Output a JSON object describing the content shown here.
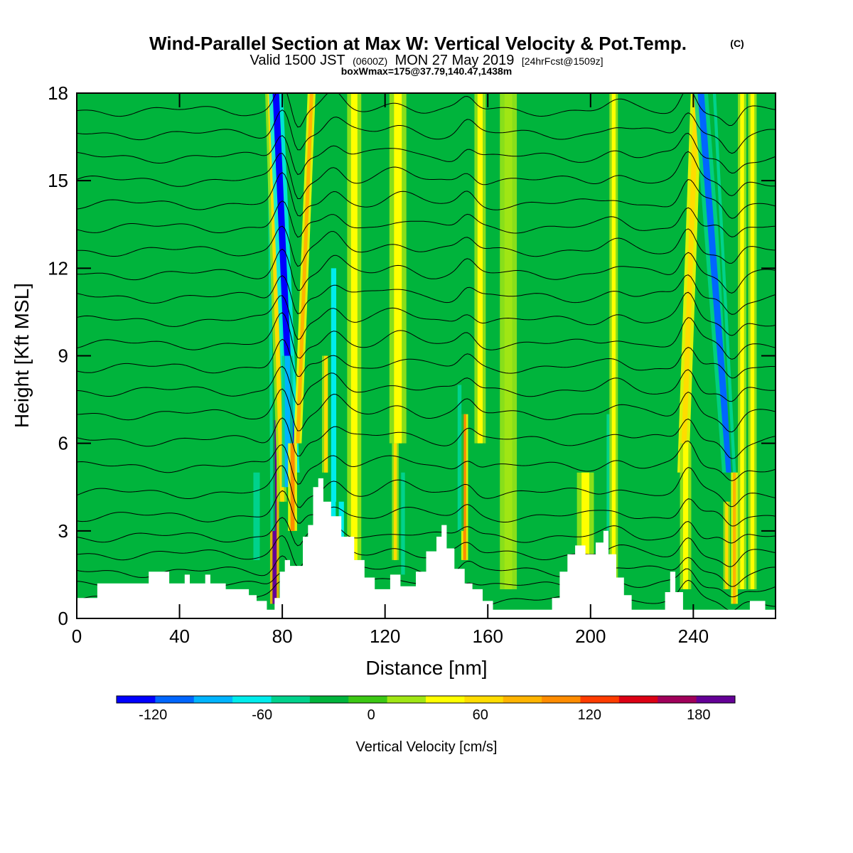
{
  "chart_data": {
    "type": "heatmap",
    "title": "Wind-Parallel Section at Max W: Vertical Velocity & Pot.Temp.",
    "title_mark": "(C)",
    "subtitle_main": "Valid 1500 JST",
    "subtitle_utc": "(0600Z)",
    "subtitle_date": "MON 27 May 2019",
    "subtitle_fcst": "[24hrFcst@1509z]",
    "subtitle2": "boxWmax=175@37.79,140.47,1438m",
    "xlabel": "Distance [nm]",
    "ylabel": "Height [Kft MSL]",
    "xlim": [
      0,
      272
    ],
    "ylim": [
      0,
      18
    ],
    "x_ticks": [
      0,
      40,
      80,
      120,
      160,
      200,
      240
    ],
    "y_ticks": [
      0,
      3,
      6,
      9,
      12,
      15,
      18
    ],
    "colorbar": {
      "label": "Vertical Velocity [cm/s]",
      "tick_values": [
        -120,
        -60,
        0,
        60,
        120,
        180
      ],
      "min": -140,
      "max": 200,
      "colors": [
        "#0000ff",
        "#0066ff",
        "#00b4ff",
        "#00ecec",
        "#00d28c",
        "#00b43c",
        "#3cc814",
        "#a0e614",
        "#ffff00",
        "#ffdc00",
        "#ffb400",
        "#ff8c00",
        "#ff3c00",
        "#dc0014",
        "#a0005a",
        "#640096"
      ]
    },
    "background_value": 0,
    "features": [
      {
        "x": 77,
        "ybot": 0.5,
        "ytop": 6.8,
        "w": 1.6,
        "value": 190,
        "tilt": 0
      },
      {
        "x": 76,
        "ybot": 3,
        "ytop": 18,
        "w": 1.2,
        "value": -40,
        "tilt": -0.08
      },
      {
        "x": 80,
        "ybot": 4,
        "ytop": 18,
        "w": 1.6,
        "value": 60,
        "tilt": -0.35
      },
      {
        "x": 84,
        "ybot": 5,
        "ytop": 18,
        "w": 2.5,
        "value": -130,
        "tilt": -0.5
      },
      {
        "x": 82,
        "ybot": 4.5,
        "ytop": 9,
        "w": 2.0,
        "value": -80,
        "tilt": 0
      },
      {
        "x": 86,
        "ybot": 6,
        "ytop": 18,
        "w": 1.4,
        "value": 80,
        "tilt": 0.45
      },
      {
        "x": 84,
        "ybot": 3,
        "ytop": 6,
        "w": 1.6,
        "value": 110,
        "tilt": 0
      },
      {
        "x": 97,
        "ybot": 5,
        "ytop": 9,
        "w": 1.4,
        "value": 60,
        "tilt": 0
      },
      {
        "x": 100,
        "ybot": 2.5,
        "ytop": 12,
        "w": 2.0,
        "value": -60,
        "tilt": 0
      },
      {
        "x": 103,
        "ybot": 1.5,
        "ytop": 4,
        "w": 2.0,
        "value": -70,
        "tilt": 0
      },
      {
        "x": 108,
        "ybot": 2,
        "ytop": 18,
        "w": 2.5,
        "value": 30,
        "tilt": 0
      },
      {
        "x": 124,
        "ybot": 2,
        "ytop": 6,
        "w": 1.2,
        "value": 60,
        "tilt": 0
      },
      {
        "x": 125,
        "ybot": 6,
        "ytop": 18,
        "w": 3.0,
        "value": 30,
        "tilt": 0
      },
      {
        "x": 127,
        "ybot": 1.5,
        "ytop": 5,
        "w": 1.5,
        "value": -40,
        "tilt": 0
      },
      {
        "x": 151,
        "ybot": 2,
        "ytop": 7,
        "w": 1.2,
        "value": 100,
        "tilt": 0
      },
      {
        "x": 149,
        "ybot": 3,
        "ytop": 8,
        "w": 1.5,
        "value": -40,
        "tilt": 0
      },
      {
        "x": 157,
        "ybot": 6,
        "ytop": 18,
        "w": 2.0,
        "value": 30,
        "tilt": 0
      },
      {
        "x": 168,
        "ybot": 1,
        "ytop": 18,
        "w": 3.0,
        "value": 20,
        "tilt": 0
      },
      {
        "x": 198,
        "ybot": 1.5,
        "ytop": 5,
        "w": 3.0,
        "value": 30,
        "tilt": 0
      },
      {
        "x": 207,
        "ybot": 3,
        "ytop": 7,
        "w": 1.5,
        "value": -40,
        "tilt": 0
      },
      {
        "x": 209,
        "ybot": 1,
        "ytop": 18,
        "w": 1.5,
        "value": 30,
        "tilt": 0
      },
      {
        "x": 236,
        "ybot": 5,
        "ytop": 18,
        "w": 2.0,
        "value": 70,
        "tilt": 0.4
      },
      {
        "x": 237,
        "ybot": 1,
        "ytop": 6,
        "w": 2.0,
        "value": 30,
        "tilt": 0
      },
      {
        "x": 254,
        "ybot": 5,
        "ytop": 18,
        "w": 2.5,
        "value": -110,
        "tilt": -0.85
      },
      {
        "x": 256,
        "ybot": 5,
        "ytop": 18,
        "w": 1.2,
        "value": -40,
        "tilt": -0.6
      },
      {
        "x": 256,
        "ybot": 0.5,
        "ytop": 5,
        "w": 1.2,
        "value": 80,
        "tilt": 0
      },
      {
        "x": 253,
        "ybot": 1,
        "ytop": 4,
        "w": 1.2,
        "value": 60,
        "tilt": 0
      },
      {
        "x": 259,
        "ybot": 1,
        "ytop": 18,
        "w": 1.5,
        "value": 40,
        "tilt": 0
      },
      {
        "x": 263,
        "ybot": 1,
        "ytop": 18,
        "w": 1.5,
        "value": 30,
        "tilt": 0
      },
      {
        "x": 70,
        "ybot": 2,
        "ytop": 5,
        "w": 2.5,
        "value": -40,
        "tilt": 0
      }
    ],
    "terrain": [
      [
        0,
        0.7
      ],
      [
        8,
        0.7
      ],
      [
        8,
        1.2
      ],
      [
        28,
        1.2
      ],
      [
        28,
        1.6
      ],
      [
        36,
        1.6
      ],
      [
        36,
        1.2
      ],
      [
        42,
        1.2
      ],
      [
        42,
        1.5
      ],
      [
        44,
        1.5
      ],
      [
        44,
        1.2
      ],
      [
        50,
        1.2
      ],
      [
        50,
        1.5
      ],
      [
        52,
        1.5
      ],
      [
        52,
        1.2
      ],
      [
        58,
        1.2
      ],
      [
        58,
        1.0
      ],
      [
        67,
        1.0
      ],
      [
        67,
        0.8
      ],
      [
        70,
        0.8
      ],
      [
        70,
        0.6
      ],
      [
        74,
        0.6
      ],
      [
        74,
        0.3
      ],
      [
        77,
        0.3
      ],
      [
        77,
        0.7
      ],
      [
        79,
        0.7
      ],
      [
        79,
        1.6
      ],
      [
        81,
        1.6
      ],
      [
        81,
        2.0
      ],
      [
        83,
        2.0
      ],
      [
        83,
        1.8
      ],
      [
        88,
        1.8
      ],
      [
        88,
        2.8
      ],
      [
        90,
        2.8
      ],
      [
        90,
        3.2
      ],
      [
        92,
        3.2
      ],
      [
        92,
        4.5
      ],
      [
        94,
        4.5
      ],
      [
        94,
        4.8
      ],
      [
        96,
        4.8
      ],
      [
        96,
        4.0
      ],
      [
        99,
        4.0
      ],
      [
        99,
        3.5
      ],
      [
        103,
        3.5
      ],
      [
        103,
        2.8
      ],
      [
        108,
        2.8
      ],
      [
        108,
        2.0
      ],
      [
        112,
        2.0
      ],
      [
        112,
        1.4
      ],
      [
        116,
        1.4
      ],
      [
        116,
        1.0
      ],
      [
        122,
        1.0
      ],
      [
        122,
        1.5
      ],
      [
        126,
        1.5
      ],
      [
        126,
        1.1
      ],
      [
        132,
        1.1
      ],
      [
        132,
        1.6
      ],
      [
        136,
        1.6
      ],
      [
        136,
        2.3
      ],
      [
        140,
        2.3
      ],
      [
        140,
        2.8
      ],
      [
        142,
        2.8
      ],
      [
        142,
        3.2
      ],
      [
        144,
        3.2
      ],
      [
        144,
        2.4
      ],
      [
        147,
        2.4
      ],
      [
        147,
        1.7
      ],
      [
        151,
        1.7
      ],
      [
        151,
        1.2
      ],
      [
        154,
        1.2
      ],
      [
        154,
        1.0
      ],
      [
        158,
        1.0
      ],
      [
        158,
        0.6
      ],
      [
        162,
        0.6
      ],
      [
        162,
        0.3
      ],
      [
        185,
        0.3
      ],
      [
        185,
        0.7
      ],
      [
        188,
        0.7
      ],
      [
        188,
        1.6
      ],
      [
        191,
        1.6
      ],
      [
        191,
        2.2
      ],
      [
        194,
        2.2
      ],
      [
        194,
        2.5
      ],
      [
        198,
        2.5
      ],
      [
        198,
        2.2
      ],
      [
        202,
        2.2
      ],
      [
        202,
        2.6
      ],
      [
        205,
        2.6
      ],
      [
        205,
        3.0
      ],
      [
        207,
        3.0
      ],
      [
        207,
        2.2
      ],
      [
        210,
        2.2
      ],
      [
        210,
        1.4
      ],
      [
        213,
        1.4
      ],
      [
        213,
        0.8
      ],
      [
        216,
        0.8
      ],
      [
        216,
        0.3
      ],
      [
        229,
        0.3
      ],
      [
        229,
        0.9
      ],
      [
        231,
        0.9
      ],
      [
        231,
        1.6
      ],
      [
        233,
        1.6
      ],
      [
        233,
        0.9
      ],
      [
        236,
        0.9
      ],
      [
        236,
        0.3
      ],
      [
        262,
        0.3
      ],
      [
        262,
        0.6
      ],
      [
        268,
        0.6
      ],
      [
        268,
        0.3
      ],
      [
        272,
        0.3
      ],
      [
        272,
        0
      ]
    ],
    "isentropes": {
      "base_heights": [
        0.6,
        1.1,
        1.6,
        2.2,
        2.8,
        3.5,
        4.3,
        5.2,
        6.1,
        7.0,
        7.8,
        8.6,
        9.4,
        10.2,
        11.0,
        11.8,
        12.6,
        13.4,
        14.2,
        15.0,
        15.8,
        16.6,
        17.4
      ],
      "perturbations": [
        {
          "x": 80,
          "amp": 0.9,
          "w": 4
        },
        {
          "x": 86,
          "amp": -0.6,
          "w": 3
        },
        {
          "x": 100,
          "amp": 0.5,
          "w": 5
        },
        {
          "x": 125,
          "amp": 0.3,
          "w": 8
        },
        {
          "x": 152,
          "amp": 0.4,
          "w": 4
        },
        {
          "x": 210,
          "amp": 0.25,
          "w": 6
        },
        {
          "x": 238,
          "amp": 0.8,
          "w": 4
        },
        {
          "x": 255,
          "amp": -0.5,
          "w": 4
        }
      ]
    },
    "grid": false
  }
}
